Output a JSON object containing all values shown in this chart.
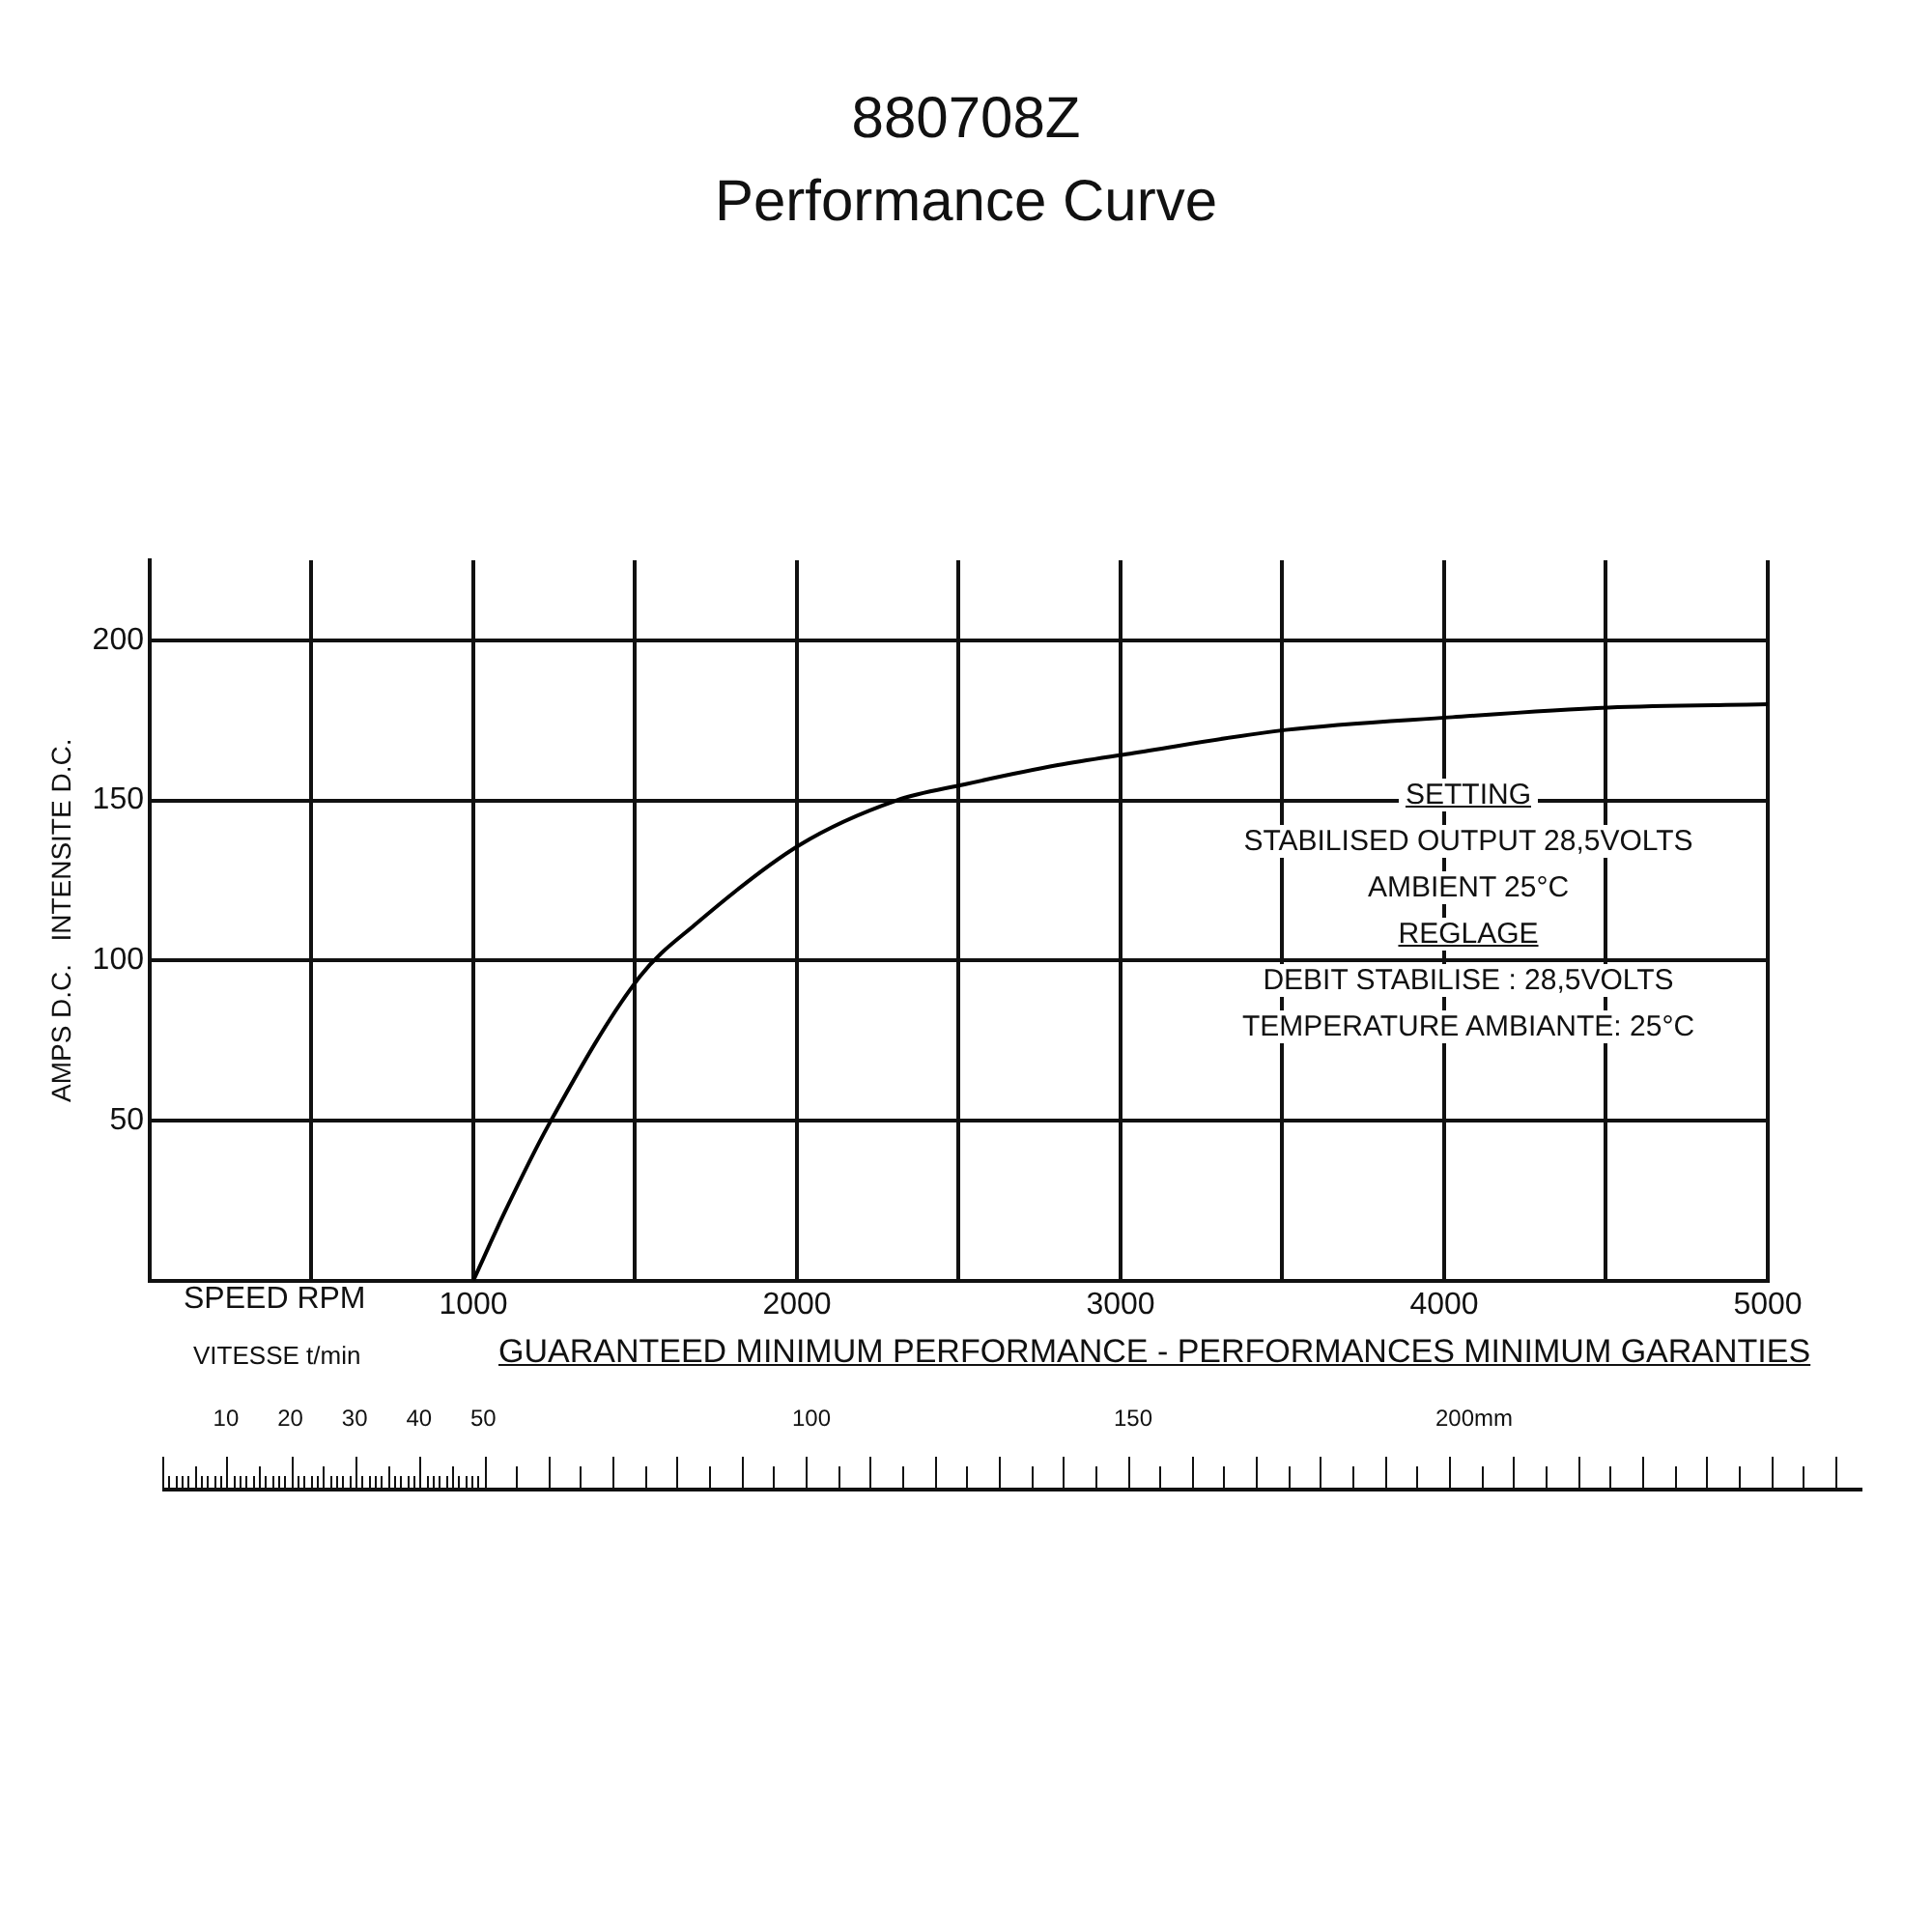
{
  "chart_data": {
    "type": "line",
    "title": "880708Z",
    "subtitle": "Performance Curve",
    "xlabel": "SPEED RPM",
    "ylabel": "AMPS D.C.   INTENSITE D.C.",
    "x": [
      1000,
      1100,
      1232,
      1515,
      1683,
      2007,
      2308,
      2518,
      2806,
      3029,
      3510,
      4026,
      4507,
      5000
    ],
    "series": [
      {
        "color": "#000000",
        "values": [
          0,
          22,
          48.5,
          95,
          111,
          136,
          150,
          155,
          161,
          164.6,
          172,
          176,
          179,
          180
        ]
      }
    ],
    "xlim": [
      0,
      5000
    ],
    "ylim": [
      0,
      225
    ],
    "xticks": [
      {
        "value": 500,
        "label": null
      },
      1000,
      {
        "value": 1500,
        "label": null
      },
      2000,
      {
        "value": 2500,
        "label": null
      },
      3000,
      {
        "value": 3500,
        "label": null
      },
      4000,
      {
        "value": 4500,
        "label": null
      },
      5000
    ],
    "yticks": [
      {
        "value": 0,
        "label": null
      },
      50,
      100,
      150,
      200
    ],
    "grid": true,
    "legend": false,
    "marker": "none",
    "line_style": "solid",
    "annotations": [
      "SETTING",
      "STABILISED OUTPUT 28,5VOLTS",
      "AMBIENT 25°C",
      "REGLAGE",
      "DEBIT STABILISE : 28,5VOLTS",
      "TEMPERATURE AMBIANTE: 25°C",
      "GUARANTEED MINIMUM PERFORMANCE - PERFORMANCES MINIMUM GARANTIES",
      "VITESSE t/min",
      "10",
      "20",
      "30",
      "40",
      "50",
      "100",
      "150",
      "200mm"
    ]
  }
}
